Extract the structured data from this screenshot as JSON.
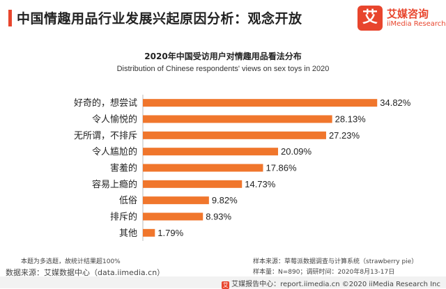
{
  "header": {
    "title": "中国情趣用品行业发展兴起原因分析：观念开放",
    "accent_color": "#e8452d"
  },
  "logo": {
    "badge_char": "艾",
    "name_cn": "艾媒咨询",
    "name_en": "iiMedia Research",
    "color": "#e8452d"
  },
  "chart_data": {
    "type": "bar",
    "orientation": "horizontal",
    "title": "2020年中国受访用户对情趣用品看法分布",
    "subtitle": "Distribution of Chinese respondents' views on sex toys in 2020",
    "categories": [
      "好奇的，想尝试",
      "令人愉悦的",
      "无所谓，不排斥",
      "令人尴尬的",
      "害羞的",
      "容易上瘾的",
      "低俗",
      "排斥的",
      "其他"
    ],
    "values": [
      34.82,
      28.13,
      27.23,
      20.09,
      17.86,
      14.73,
      9.82,
      8.93,
      1.79
    ],
    "value_labels": [
      "34.82%",
      "28.13%",
      "27.23%",
      "20.09%",
      "17.86%",
      "14.73%",
      "9.82%",
      "8.93%",
      "1.79%"
    ],
    "xlim": [
      0,
      35
    ],
    "grid": false,
    "bar_color": "#f0762c"
  },
  "notes": {
    "footnote": "本题为多选题，故统计结果超100%",
    "data_source": "数据来源：艾媒数据中心（data.iimedia.cn）",
    "sample_source": "样本来源：草莓派数据调查与计算系统（strawberry pie）",
    "sample_info": "样本量：N=890；调研时间：2020年8月13-17日"
  },
  "footer": {
    "logo_char": "艾",
    "text": "艾媒报告中心：report.iimedia.cn  ©2020  iiMedia Research  Inc"
  }
}
